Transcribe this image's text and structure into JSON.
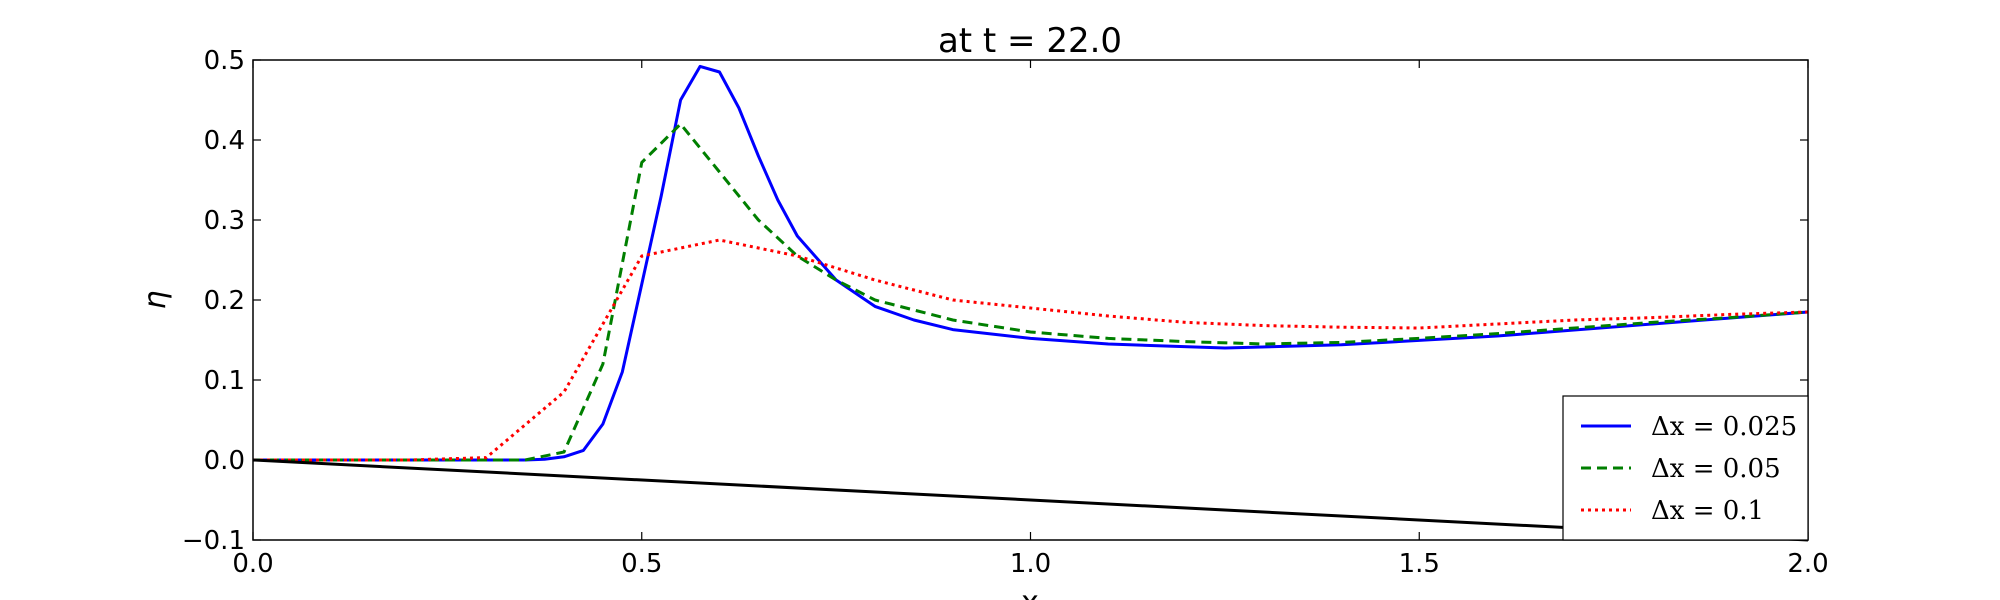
{
  "chart_data": {
    "type": "line",
    "title": "at t = 22.0",
    "xlabel": "x",
    "ylabel": "η",
    "xlim": [
      0.0,
      2.0
    ],
    "ylim": [
      -0.1,
      0.5
    ],
    "xticks": [
      "0.0",
      "0.5",
      "1.0",
      "1.5",
      "2.0"
    ],
    "yticks": [
      "−0.1",
      "0.0",
      "0.1",
      "0.2",
      "0.3",
      "0.4",
      "0.5"
    ],
    "grid": false,
    "legend_position": "lower-right",
    "series": [
      {
        "name": "Δx = 0.025",
        "color": "#0000ff",
        "style": "solid",
        "x": [
          0.0,
          0.1,
          0.2,
          0.3,
          0.35,
          0.375,
          0.4,
          0.425,
          0.45,
          0.475,
          0.5,
          0.525,
          0.55,
          0.575,
          0.6,
          0.625,
          0.65,
          0.675,
          0.7,
          0.75,
          0.8,
          0.85,
          0.9,
          1.0,
          1.1,
          1.25,
          1.4,
          1.6,
          1.8,
          2.0
        ],
        "y": [
          0.0,
          0.0,
          0.0,
          0.0,
          0.0,
          0.001,
          0.004,
          0.012,
          0.045,
          0.11,
          0.22,
          0.33,
          0.45,
          0.492,
          0.485,
          0.44,
          0.38,
          0.325,
          0.28,
          0.225,
          0.192,
          0.175,
          0.163,
          0.152,
          0.145,
          0.14,
          0.144,
          0.155,
          0.17,
          0.185
        ]
      },
      {
        "name": "Δx = 0.05",
        "color": "#007f00",
        "style": "dashed",
        "x": [
          0.0,
          0.1,
          0.2,
          0.3,
          0.35,
          0.4,
          0.45,
          0.5,
          0.55,
          0.6,
          0.65,
          0.7,
          0.75,
          0.8,
          0.9,
          1.0,
          1.1,
          1.2,
          1.3,
          1.4,
          1.5,
          1.6,
          1.7,
          1.8,
          1.9,
          2.0
        ],
        "y": [
          0.0,
          0.0,
          0.0,
          0.0,
          0.0,
          0.01,
          0.12,
          0.372,
          0.42,
          0.36,
          0.3,
          0.255,
          0.225,
          0.2,
          0.175,
          0.16,
          0.152,
          0.148,
          0.145,
          0.147,
          0.152,
          0.158,
          0.165,
          0.172,
          0.178,
          0.185
        ]
      },
      {
        "name": "Δx = 0.1",
        "color": "#ff0000",
        "style": "dotted",
        "x": [
          0.0,
          0.1,
          0.2,
          0.3,
          0.4,
          0.5,
          0.6,
          0.7,
          0.8,
          0.9,
          1.0,
          1.1,
          1.2,
          1.3,
          1.4,
          1.5,
          1.6,
          1.7,
          1.8,
          1.9,
          2.0
        ],
        "y": [
          0.0,
          0.0,
          0.0,
          0.003,
          0.085,
          0.255,
          0.275,
          0.255,
          0.225,
          0.2,
          0.19,
          0.18,
          0.172,
          0.168,
          0.166,
          0.165,
          0.17,
          0.175,
          0.178,
          0.182,
          0.185
        ]
      },
      {
        "color": "#000000",
        "style": "solid",
        "x": [
          0.0,
          2.0
        ],
        "y": [
          0.0,
          -0.1
        ]
      }
    ]
  }
}
